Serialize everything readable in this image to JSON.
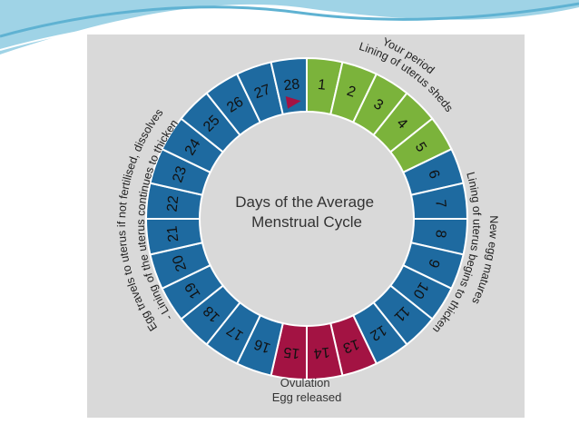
{
  "diagram": {
    "center_title_lines": [
      "Days of the Average",
      "Menstrual Cycle"
    ],
    "days": [
      "1",
      "2",
      "3",
      "4",
      "5",
      "6",
      "7",
      "8",
      "9",
      "10",
      "11",
      "12",
      "13",
      "14",
      "15",
      "16",
      "17",
      "18",
      "19",
      "20",
      "21",
      "22",
      "23",
      "24",
      "25",
      "26",
      "27",
      "28"
    ],
    "phase_colors": {
      "period": "#7bb33b",
      "ovulation": "#a31343",
      "normal": "#1e6aa0"
    },
    "period_days": [
      1,
      2,
      3,
      4,
      5
    ],
    "ovulation_days": [
      13,
      14,
      15
    ],
    "current_day_marker": 28,
    "marker_color": "#a31343",
    "annotations": {
      "period": [
        "Your period",
        "Lining of uterus sheds"
      ],
      "follicular": [
        "New egg matures",
        "Lining of uterus begins to thicken"
      ],
      "luteal": [
        "Egg travels to uterus if not fertilised, dissolves",
        "- Lining of the uterus continues to thicken"
      ]
    },
    "ovulation_label": [
      "Ovulation",
      "Egg released"
    ]
  }
}
